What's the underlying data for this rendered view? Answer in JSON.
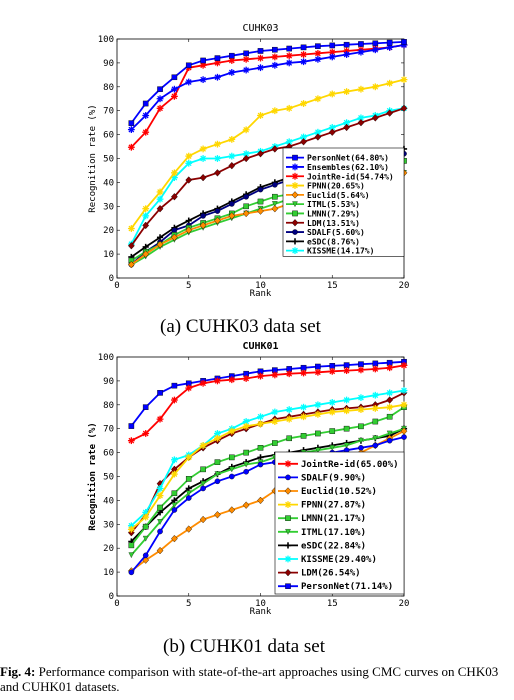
{
  "subcaptions": {
    "a": "(a) CUHK03 data set",
    "b": "(b) CUHK01 data set"
  },
  "caption": {
    "label": "Fig. 4:",
    "text": "Performance comparison with state-of-the-art approaches using CMC curves on CHK03 and CUHK01 datasets."
  },
  "chart_data": [
    {
      "type": "line",
      "title": "CUHK03",
      "xlabel": "Rank",
      "ylabel": "Recognition rate (%)",
      "xlim": [
        0,
        20
      ],
      "ylim": [
        0,
        100
      ],
      "xticks": [
        0,
        5,
        10,
        15,
        20
      ],
      "yticks": [
        0,
        10,
        20,
        30,
        40,
        50,
        60,
        70,
        80,
        90,
        100
      ],
      "grid": false,
      "legend": "center-right",
      "x": [
        1,
        2,
        3,
        4,
        5,
        6,
        7,
        8,
        9,
        10,
        11,
        12,
        13,
        14,
        15,
        16,
        17,
        18,
        19,
        20
      ],
      "series": [
        {
          "name": "PersonNet(64.80%)",
          "color": "#0000ff",
          "marker": "square",
          "values": [
            64.8,
            73,
            79,
            84,
            89,
            91,
            92,
            93,
            94,
            95,
            95.5,
            96,
            96.5,
            97,
            97.3,
            97.6,
            97.9,
            98.2,
            98.5,
            98.8
          ]
        },
        {
          "name": "Ensembles(62.10%)",
          "color": "#0000ff",
          "marker": "star",
          "values": [
            62.1,
            68,
            75,
            79,
            82,
            83,
            84,
            86,
            87,
            88,
            89,
            90,
            90.5,
            91.5,
            92.5,
            93.5,
            94.5,
            95.5,
            96.5,
            97.5
          ]
        },
        {
          "name": "JointRe-id(54.74%)",
          "color": "#ff0000",
          "marker": "star",
          "values": [
            54.7,
            61,
            71,
            76,
            88,
            89,
            90,
            91,
            91.5,
            92,
            92.5,
            93,
            93.5,
            94,
            94.5,
            95,
            95.5,
            96,
            96.5,
            97.5
          ]
        },
        {
          "name": "FPNN(20.65%)",
          "color": "#ffd700",
          "marker": "star",
          "values": [
            20.7,
            29,
            36,
            44,
            51,
            54,
            56,
            58,
            62,
            68,
            70,
            71,
            73,
            75,
            77,
            78,
            79,
            80,
            81.5,
            83
          ]
        },
        {
          "name": "Euclid(5.64%)",
          "color": "#ff8c00",
          "marker": "diamond",
          "values": [
            5.6,
            10,
            14,
            17,
            20,
            22,
            24,
            26,
            27,
            28,
            29,
            31,
            33,
            35,
            37,
            38,
            39,
            40,
            42,
            44
          ]
        },
        {
          "name": "ITML(5.53%)",
          "color": "#32cd32",
          "marker": "triangle-down",
          "values": [
            5.5,
            9,
            13,
            16,
            19,
            21,
            23,
            25,
            27,
            29,
            31,
            33,
            35,
            37,
            39,
            40,
            41,
            42,
            43,
            44
          ]
        },
        {
          "name": "LMNN(7.29%)",
          "color": "#32cd32",
          "marker": "square",
          "values": [
            7.3,
            11,
            14,
            18,
            21,
            23,
            25,
            27,
            30,
            32,
            34,
            35,
            36,
            38,
            40,
            41,
            43,
            45,
            47,
            49
          ]
        },
        {
          "name": "LDM(13.51%)",
          "color": "#8b0000",
          "marker": "diamond",
          "values": [
            13.5,
            22,
            29,
            34,
            41,
            42,
            44,
            47,
            50,
            52,
            54,
            55,
            57,
            59,
            61,
            63,
            65,
            67,
            69,
            71
          ]
        },
        {
          "name": "SDALF(5.60%)",
          "color": "#000080",
          "marker": "circle",
          "values": [
            5.6,
            11,
            15,
            20,
            22,
            26,
            28,
            31,
            34,
            37,
            39,
            41,
            43,
            45,
            47,
            48,
            49,
            50,
            51,
            52
          ]
        },
        {
          "name": "eSDC(8.76%)",
          "color": "#000000",
          "marker": "plus",
          "values": [
            8.8,
            13,
            17,
            21,
            24,
            27,
            29,
            32,
            35,
            38,
            40,
            42,
            44,
            46,
            48,
            49,
            50,
            51,
            52,
            54
          ]
        },
        {
          "name": "KISSME(14.17%)",
          "color": "#00ffff",
          "marker": "star",
          "values": [
            14.2,
            26,
            33,
            42,
            48,
            50,
            50,
            51,
            52,
            53,
            55,
            57,
            59,
            61,
            63,
            65,
            67,
            68,
            70,
            71
          ]
        }
      ]
    },
    {
      "type": "line",
      "title": "CUHK01",
      "xlabel": "Rank",
      "ylabel": "Recognition rate (%)",
      "xlim": [
        0,
        20
      ],
      "ylim": [
        0,
        100
      ],
      "xticks": [
        0,
        5,
        10,
        15,
        20
      ],
      "yticks": [
        0,
        10,
        20,
        30,
        40,
        50,
        60,
        70,
        80,
        90,
        100
      ],
      "grid": false,
      "legend": "bottom-right",
      "x": [
        1,
        2,
        3,
        4,
        5,
        6,
        7,
        8,
        9,
        10,
        11,
        12,
        13,
        14,
        15,
        16,
        17,
        18,
        19,
        20
      ],
      "series": [
        {
          "name": "JointRe-id(65.00%)",
          "color": "#ff0000",
          "marker": "star",
          "values": [
            65,
            68,
            74,
            82,
            87,
            89,
            90,
            90.5,
            91,
            92,
            92.5,
            93,
            93.3,
            93.6,
            94,
            94.3,
            94.6,
            95,
            95.5,
            96.5
          ]
        },
        {
          "name": "SDALF(9.90%)",
          "color": "#0000ff",
          "marker": "circle",
          "values": [
            9.9,
            17,
            27,
            36,
            41,
            45,
            48,
            50,
            52,
            55,
            56,
            57,
            58,
            59,
            60,
            61,
            62,
            63,
            65,
            66.5
          ]
        },
        {
          "name": "Euclid(10.52%)",
          "color": "#ff8c00",
          "marker": "diamond",
          "values": [
            10.5,
            15,
            19,
            24,
            28,
            32,
            34,
            36,
            38,
            40,
            44,
            47,
            50,
            53,
            56,
            58,
            60,
            63,
            66,
            69
          ]
        },
        {
          "name": "FPNN(27.87%)",
          "color": "#ffd700",
          "marker": "star",
          "values": [
            27.9,
            33,
            42,
            51,
            58,
            63,
            66,
            69,
            71,
            72,
            73,
            74,
            75,
            76,
            77,
            77.5,
            78,
            78.5,
            79,
            80
          ]
        },
        {
          "name": "LMNN(21.17%)",
          "color": "#32cd32",
          "marker": "square",
          "values": [
            21.2,
            29,
            37,
            43,
            49,
            53,
            56,
            58,
            60,
            62,
            64,
            66,
            67,
            68,
            69,
            70,
            71,
            73,
            75,
            79
          ]
        },
        {
          "name": "ITML(17.10%)",
          "color": "#32cd32",
          "marker": "triangle-down",
          "values": [
            17.1,
            24,
            31,
            38,
            43,
            47,
            51,
            53,
            55,
            56,
            58,
            59,
            60,
            61,
            62,
            63,
            65,
            66,
            68,
            70
          ]
        },
        {
          "name": "eSDC(22.84%)",
          "color": "#000000",
          "marker": "plus",
          "values": [
            22.8,
            29,
            35,
            40,
            45,
            48,
            51,
            54,
            56,
            58,
            59,
            60,
            61,
            62,
            63,
            64,
            65,
            66,
            67,
            70
          ]
        },
        {
          "name": "KISSME(29.40%)",
          "color": "#00ffff",
          "marker": "star",
          "values": [
            29.4,
            35,
            45,
            57,
            59,
            63,
            68,
            70,
            73,
            75,
            77,
            78,
            79,
            80,
            81,
            82,
            83,
            84,
            85,
            86
          ]
        },
        {
          "name": "LDM(26.54%)",
          "color": "#8b0000",
          "marker": "diamond",
          "values": [
            26.5,
            34,
            47,
            53,
            58,
            62,
            65,
            68,
            70,
            72,
            74,
            75,
            76,
            77,
            78,
            78.5,
            79,
            80,
            82,
            85
          ]
        },
        {
          "name": "PersonNet(71.14%)",
          "color": "#0000ff",
          "marker": "square",
          "values": [
            71.1,
            79,
            85,
            88,
            89,
            90,
            91,
            92,
            93,
            94,
            94.5,
            95,
            95.5,
            96,
            96.3,
            96.6,
            97,
            97.3,
            97.6,
            98
          ]
        }
      ]
    }
  ]
}
